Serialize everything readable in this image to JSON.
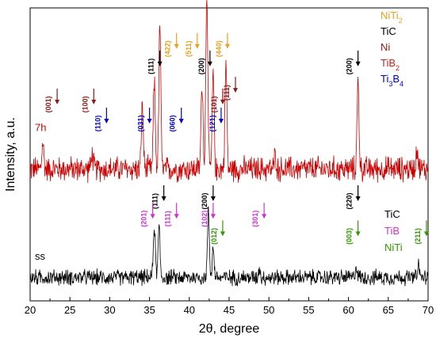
{
  "chart_data": {
    "type": "line",
    "xlabel": "2θ, degree",
    "ylabel": "Intensity, a.u.",
    "xlim": [
      20,
      70
    ],
    "xticks": [
      20,
      25,
      30,
      35,
      40,
      45,
      50,
      55,
      60,
      65,
      70
    ],
    "yticks_shown": false,
    "series": [
      {
        "name": "7h",
        "color": "#cc0000",
        "baseline": 0.45,
        "noise": 0.035,
        "peaks": [
          {
            "x": 21.6,
            "height": 0.09
          },
          {
            "x": 27.8,
            "height": 0.05
          },
          {
            "x": 34.1,
            "height": 0.22
          },
          {
            "x": 35.6,
            "height": 0.3
          },
          {
            "x": 36.3,
            "height": 0.5
          },
          {
            "x": 41.6,
            "height": 0.3
          },
          {
            "x": 42.2,
            "height": 0.62
          },
          {
            "x": 43.0,
            "height": 0.32
          },
          {
            "x": 44.6,
            "height": 0.36
          },
          {
            "x": 50.8,
            "height": 0.05
          },
          {
            "x": 61.2,
            "height": 0.3
          },
          {
            "x": 68.6,
            "height": 0.08
          }
        ]
      },
      {
        "name": "ss",
        "color": "#000000",
        "baseline": 0.08,
        "noise": 0.022,
        "peaks": [
          {
            "x": 35.6,
            "height": 0.18
          },
          {
            "x": 36.2,
            "height": 0.17
          },
          {
            "x": 42.4,
            "height": 0.22
          },
          {
            "x": 43.0,
            "height": 0.1
          },
          {
            "x": 48.8,
            "height": 0.03
          },
          {
            "x": 61.0,
            "height": 0.04
          },
          {
            "x": 68.8,
            "height": 0.04
          }
        ]
      }
    ],
    "legend_top": [
      {
        "label": "NiTi",
        "sub": "2",
        "color": "#e8a020"
      },
      {
        "label": "TiC",
        "sub": "",
        "color": "#000000"
      },
      {
        "label": "Ni",
        "sub": "",
        "color": "#8b1a1a"
      },
      {
        "label": "TiB",
        "sub": "2",
        "color": "#cc2222"
      },
      {
        "label": "Ti",
        "sub": "3",
        "label2": "B",
        "sub2": "4",
        "color": "#0000cc"
      }
    ],
    "legend_bottom": [
      {
        "label": "TiC",
        "sub": "",
        "color": "#000000"
      },
      {
        "label": "TiB",
        "sub": "",
        "color": "#cc33cc"
      },
      {
        "label": "NiTi",
        "sub": "",
        "color": "#339900"
      }
    ],
    "annotations_top": [
      {
        "x": 22.8,
        "label": "(001)",
        "color": "#8b1a1a",
        "level": 0.73
      },
      {
        "x": 27.4,
        "label": "(100)",
        "color": "#8b1a1a",
        "level": 0.73
      },
      {
        "x": 29.0,
        "label": "(110)",
        "color": "#0000cc",
        "level": 0.665
      },
      {
        "x": 34.4,
        "label": "(031)",
        "color": "#0000cc",
        "level": 0.665
      },
      {
        "x": 38.4,
        "label": "(060)",
        "color": "#0000cc",
        "level": 0.665
      },
      {
        "x": 43.4,
        "label": "(121)",
        "color": "#0000cc",
        "level": 0.665
      },
      {
        "x": 43.6,
        "label": "(101)",
        "color": "#8b1a1a",
        "level": 0.73
      },
      {
        "x": 45.2,
        "label": "(111)",
        "color": "#8b1a1a",
        "level": 0.77
      },
      {
        "x": 35.7,
        "label": "(111)",
        "color": "#000000",
        "level": 0.86
      },
      {
        "x": 42.0,
        "label": "(200)",
        "color": "#000000",
        "level": 0.86
      },
      {
        "x": 37.8,
        "label": "(422)",
        "color": "#e8a020",
        "level": 0.92
      },
      {
        "x": 40.4,
        "label": "(511)",
        "color": "#e8a020",
        "level": 0.92
      },
      {
        "x": 44.2,
        "label": "(440)",
        "color": "#e8a020",
        "level": 0.92
      },
      {
        "x": 60.6,
        "label": "(200)",
        "color": "#000000",
        "level": 0.86
      }
    ],
    "annotations_bottom": [
      {
        "x": 36.2,
        "label": "(111)",
        "color": "#000000",
        "level": 0.4
      },
      {
        "x": 42.4,
        "label": "(200)",
        "color": "#000000",
        "level": 0.4
      },
      {
        "x": 34.8,
        "label": "(201)",
        "color": "#cc33cc",
        "level": 0.34
      },
      {
        "x": 37.8,
        "label": "(111)",
        "color": "#cc33cc",
        "level": 0.34
      },
      {
        "x": 42.4,
        "label": "(102)",
        "color": "#cc33cc",
        "level": 0.34
      },
      {
        "x": 48.8,
        "label": "(301)",
        "color": "#cc33cc",
        "level": 0.34
      },
      {
        "x": 43.6,
        "label": "(012)",
        "color": "#339900",
        "level": 0.28
      },
      {
        "x": 60.6,
        "label": "(220)",
        "color": "#000000",
        "level": 0.4
      },
      {
        "x": 60.6,
        "label": "(003)",
        "color": "#339900",
        "level": 0.28
      },
      {
        "x": 69.2,
        "label": "(211)",
        "color": "#339900",
        "level": 0.28
      }
    ]
  }
}
